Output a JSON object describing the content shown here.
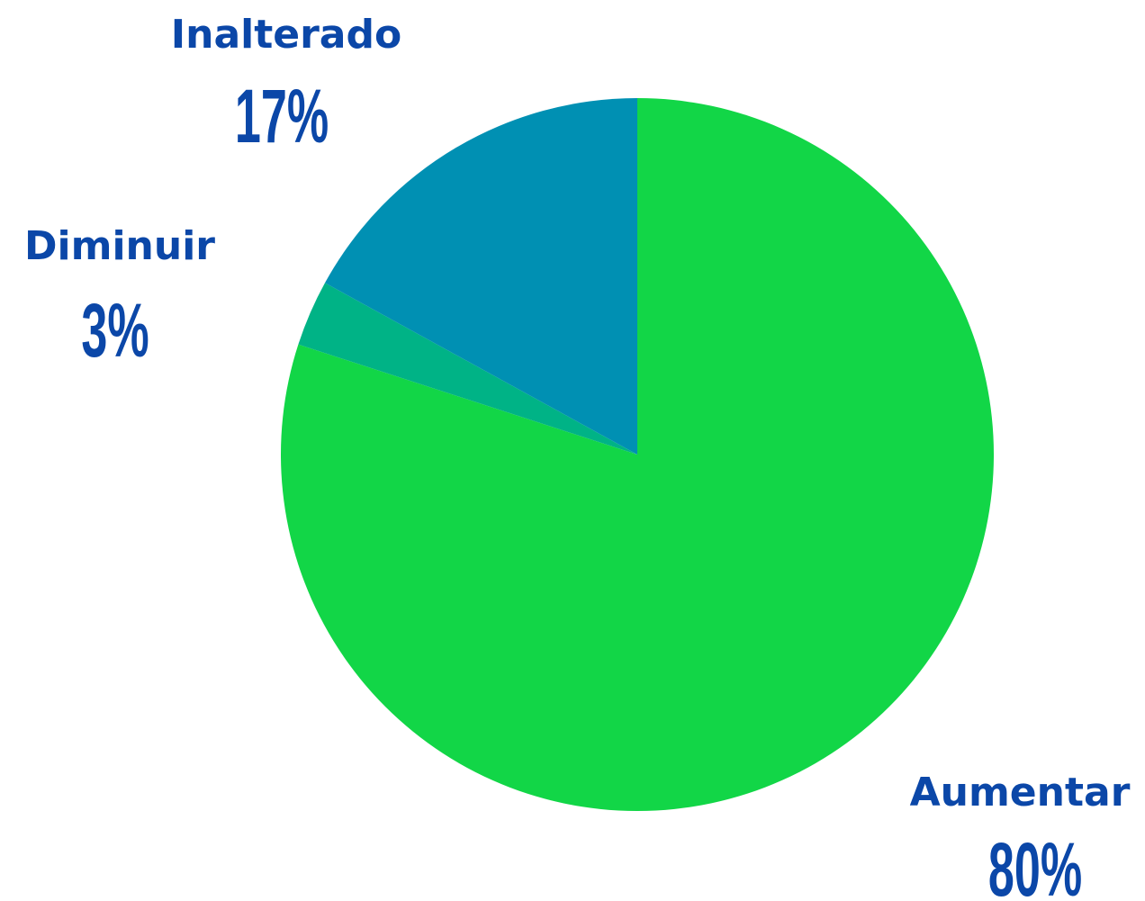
{
  "chart_data": {
    "type": "pie",
    "categories": [
      "Aumentar",
      "Diminuir",
      "Inalterado"
    ],
    "values": [
      80,
      3,
      17
    ],
    "value_labels": [
      "80%",
      "3%",
      "17%"
    ],
    "colors": [
      "#12d647",
      "#00b386",
      "#0090b3"
    ]
  }
}
